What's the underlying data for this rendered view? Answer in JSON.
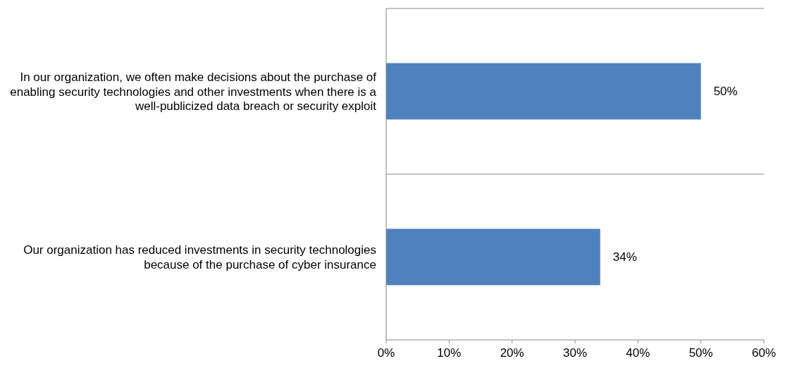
{
  "chart_data": {
    "type": "bar",
    "orientation": "horizontal",
    "categories": [
      "In our organization, we often make decisions about the purchase of enabling security technologies and other investments when there is a well-publicized data breach or security exploit",
      "Our organization has reduced investments in security technologies because of the purchase of cyber insurance"
    ],
    "values": [
      50,
      34
    ],
    "color": "#4f81bd",
    "value_labels": [
      "50%",
      "34%"
    ],
    "xlim": [
      0,
      60
    ],
    "xticks": [
      {
        "value": 0,
        "label": "0%"
      },
      {
        "value": 10,
        "label": "10%"
      },
      {
        "value": 20,
        "label": "20%"
      },
      {
        "value": 30,
        "label": "30%"
      },
      {
        "value": 40,
        "label": "40%"
      },
      {
        "value": 50,
        "label": "50%"
      },
      {
        "value": 60,
        "label": "60%"
      }
    ],
    "grid": "y"
  }
}
